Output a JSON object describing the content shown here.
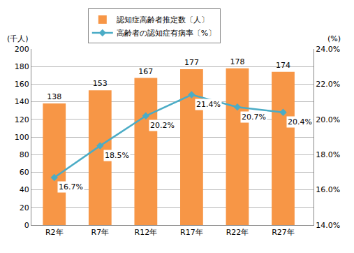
{
  "chart_data": {
    "type": "bar",
    "categories": [
      "R2年",
      "R7年",
      "R12年",
      "R17年",
      "R22年",
      "R27年"
    ],
    "series": [
      {
        "name": "認知症高齢者推定数〔人〕",
        "type": "bar",
        "color": "#F79646",
        "values": [
          138,
          153,
          167,
          177,
          178,
          174
        ]
      },
      {
        "name": "高齢者の認知症有病率〔%〕",
        "type": "line",
        "axis": "y2",
        "color": "#4BACC6",
        "marker": "diamond",
        "values": [
          16.7,
          18.5,
          20.2,
          21.4,
          20.7,
          20.4
        ],
        "value_labels": [
          "16.7%",
          "18.5%",
          "20.2%",
          "21.4%",
          "20.7%",
          "20.4%"
        ]
      }
    ],
    "ylabel": "(千人)",
    "y2label": "(%)",
    "ylim": [
      0,
      200
    ],
    "yticks": [
      0,
      20,
      40,
      60,
      80,
      100,
      120,
      140,
      160,
      180,
      200
    ],
    "y2lim": [
      14,
      24
    ],
    "y2ticks": [
      {
        "value": 14,
        "label": "14.0%"
      },
      {
        "value": 16,
        "label": "16.0%"
      },
      {
        "value": 18,
        "label": "18.0%"
      },
      {
        "value": 20,
        "label": "20.0%"
      },
      {
        "value": 22,
        "label": "22.0%"
      },
      {
        "value": 24,
        "label": "24.0%"
      }
    ],
    "grid": true,
    "legend": "top",
    "data_labels": true
  }
}
